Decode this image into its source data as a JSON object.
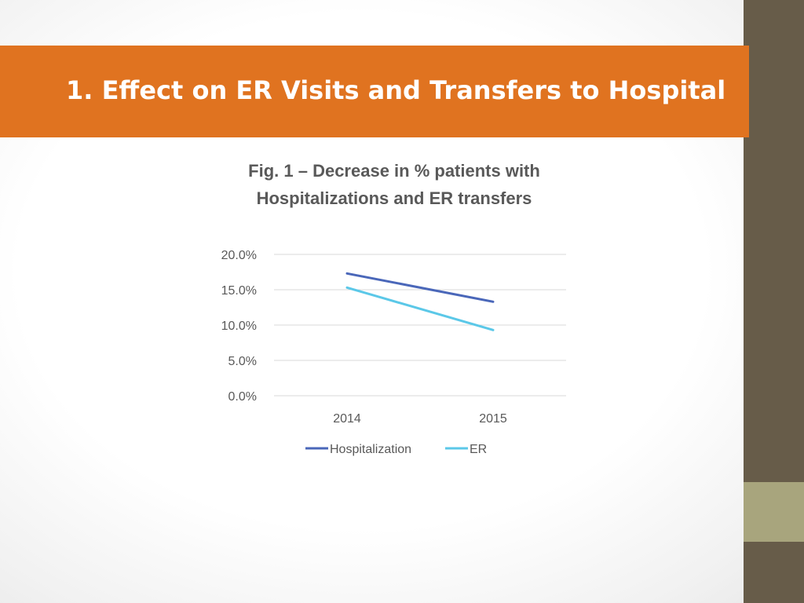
{
  "slide": {
    "title": "1. Effect on ER Visits and Transfers to Hospital"
  },
  "colors": {
    "title_bar": "#e07320",
    "sidebar": "#675c49",
    "sidebar_accent": "#a8a57d"
  },
  "chart_data": {
    "type": "line",
    "title": "Fig. 1 – Decrease in % patients with Hospitalizations and ER transfers",
    "categories": [
      "2014",
      "2015"
    ],
    "series": [
      {
        "name": "Hospitalization",
        "values": [
          17.3,
          13.3
        ],
        "color": "#4a67b9"
      },
      {
        "name": "ER",
        "values": [
          15.3,
          9.3
        ],
        "color": "#5bc8e8"
      }
    ],
    "ylim": [
      0,
      20
    ],
    "yticks": [
      0,
      5,
      10,
      15,
      20
    ],
    "ytick_labels": [
      "0.0%",
      "5.0%",
      "10.0%",
      "15.0%",
      "20.0%"
    ],
    "xlabel": "",
    "ylabel": "",
    "grid": true,
    "legend": "bottom"
  }
}
